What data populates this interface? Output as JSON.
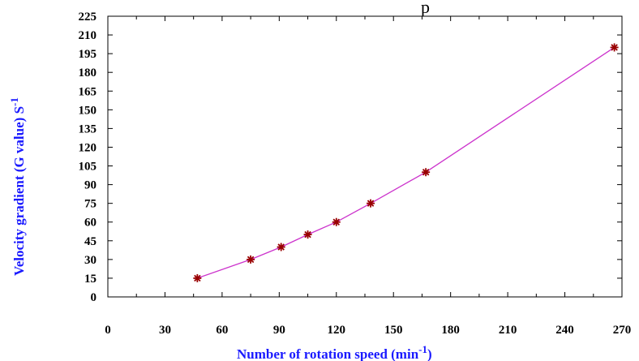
{
  "chart_data": {
    "type": "line",
    "title": "",
    "top_fragment": "p",
    "xlabel": "Number of rotation speed (min",
    "xlabel_sup": "-1",
    "xlabel_close": ")",
    "ylabel": "Velocity gradient (G value)  S",
    "ylabel_sup": "-1",
    "xlim": [
      0,
      270
    ],
    "ylim": [
      0,
      225
    ],
    "xticks": [
      "0",
      "30",
      "60",
      "90",
      "120",
      "150",
      "180",
      "210",
      "240",
      "270"
    ],
    "yticks": [
      "0",
      "15",
      "30",
      "45",
      "60",
      "75",
      "90",
      "105",
      "120",
      "135",
      "150",
      "165",
      "180",
      "195",
      "210",
      "225"
    ],
    "grid": false,
    "series": [
      {
        "x": [
          47,
          75,
          91,
          105,
          120,
          138,
          167,
          266
        ],
        "y": [
          15,
          30,
          40,
          50,
          60,
          75,
          100,
          200
        ]
      }
    ],
    "colors": {
      "line": "#cc33cc",
      "marker": "#990000",
      "axis_title": "#1a1aff"
    }
  }
}
